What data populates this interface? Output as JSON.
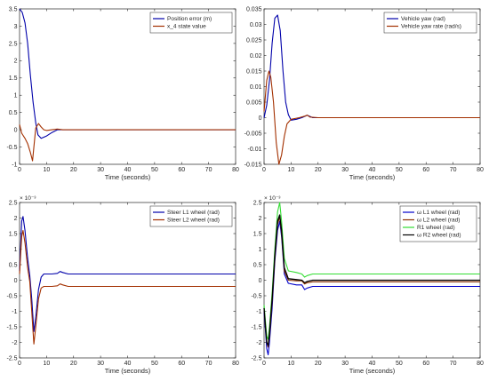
{
  "chart_data": [
    {
      "type": "line",
      "xlabel": "Time (seconds)",
      "xlim": [
        0,
        80
      ],
      "ylim": [
        -1,
        3.5
      ],
      "xticks": [
        0,
        10,
        20,
        30,
        40,
        50,
        60,
        70,
        80
      ],
      "yticks": [
        "3.5",
        "3",
        "2.5",
        "2",
        "1.5",
        "1",
        "0.5",
        "0",
        "-0.5",
        "-1"
      ],
      "yticks_values": [
        3.5,
        3,
        2.5,
        2,
        1.5,
        1,
        0.5,
        0,
        -0.5,
        -1
      ],
      "exponent_label": "",
      "legend_position": "top-right",
      "grid": false,
      "series": [
        {
          "name": "Position error (m)",
          "color": "#0000aa",
          "points": [
            [
              0,
              3.5
            ],
            [
              1,
              3.4
            ],
            [
              2,
              3.1
            ],
            [
              3,
              2.5
            ],
            [
              4,
              1.6
            ],
            [
              5,
              0.8
            ],
            [
              6,
              0.2
            ],
            [
              6.8,
              -0.15
            ],
            [
              8,
              -0.25
            ],
            [
              10,
              -0.18
            ],
            [
              12,
              -0.08
            ],
            [
              14,
              0.0
            ],
            [
              16,
              0.0
            ],
            [
              20,
              0
            ],
            [
              80,
              0
            ]
          ]
        },
        {
          "name": "x_4 state value",
          "color": "#a33000",
          "points": [
            [
              0,
              0.15
            ],
            [
              0.8,
              -0.1
            ],
            [
              2,
              -0.25
            ],
            [
              3,
              -0.4
            ],
            [
              4,
              -0.65
            ],
            [
              4.8,
              -0.9
            ],
            [
              5.3,
              -0.5
            ],
            [
              6,
              0.05
            ],
            [
              7,
              0.18
            ],
            [
              8,
              0.08
            ],
            [
              9,
              0.0
            ],
            [
              10,
              -0.02
            ],
            [
              12,
              0.0
            ],
            [
              14,
              0.02
            ],
            [
              16,
              0.0
            ],
            [
              80,
              0
            ]
          ]
        }
      ]
    },
    {
      "type": "line",
      "xlabel": "Time (seconds)",
      "xlim": [
        0,
        80
      ],
      "ylim": [
        -0.015,
        0.035
      ],
      "xticks": [
        0,
        10,
        20,
        30,
        40,
        50,
        60,
        70,
        80
      ],
      "yticks": [
        "0.035",
        "0.03",
        "0.025",
        "0.02",
        "0.015",
        "0.01",
        "0.005",
        "0",
        "-0.005",
        "-0.01",
        "-0.015"
      ],
      "yticks_values": [
        0.035,
        0.03,
        0.025,
        0.02,
        0.015,
        0.01,
        0.005,
        0,
        -0.005,
        -0.01,
        -0.015
      ],
      "exponent_label": "",
      "legend_position": "top-right",
      "grid": false,
      "series": [
        {
          "name": "Vehicle yaw (rad)",
          "color": "#0000aa",
          "points": [
            [
              0,
              0
            ],
            [
              1,
              0.004
            ],
            [
              2,
              0.012
            ],
            [
              3,
              0.024
            ],
            [
              4,
              0.032
            ],
            [
              5,
              0.033
            ],
            [
              6,
              0.028
            ],
            [
              7,
              0.015
            ],
            [
              8,
              0.005
            ],
            [
              9,
              0.001
            ],
            [
              10,
              -0.0008
            ],
            [
              12,
              -0.0005
            ],
            [
              14,
              0.0
            ],
            [
              16,
              0.0008
            ],
            [
              18,
              0
            ],
            [
              80,
              0
            ]
          ]
        },
        {
          "name": "Vehicle yaw rate (rad/s)",
          "color": "#a33000",
          "points": [
            [
              0,
              0.002
            ],
            [
              1,
              0.012
            ],
            [
              1.8,
              0.015
            ],
            [
              2.5,
              0.013
            ],
            [
              3.5,
              0.005
            ],
            [
              4.5,
              -0.008
            ],
            [
              5.5,
              -0.015
            ],
            [
              6.5,
              -0.012
            ],
            [
              7.5,
              -0.006
            ],
            [
              8.5,
              -0.002
            ],
            [
              10,
              -0.0005
            ],
            [
              13,
              0.0
            ],
            [
              15,
              0.0005
            ],
            [
              16,
              0.0008
            ],
            [
              17,
              0.0002
            ],
            [
              20,
              0
            ],
            [
              80,
              0
            ]
          ]
        }
      ]
    },
    {
      "type": "line",
      "xlabel": "Time (seconds)",
      "xlim": [
        0,
        80
      ],
      "ylim": [
        -2.5,
        2.5
      ],
      "xticks": [
        0,
        10,
        20,
        30,
        40,
        50,
        60,
        70,
        80
      ],
      "yticks": [
        "2.5",
        "2",
        "1.5",
        "1",
        "0.5",
        "0",
        "-0.5",
        "-1",
        "-1.5",
        "-2",
        "-2.5"
      ],
      "yticks_values": [
        2.5,
        2,
        1.5,
        1,
        0.5,
        0,
        -0.5,
        -1,
        -1.5,
        -2,
        -2.5
      ],
      "exponent_label": "× 10⁻³",
      "legend_position": "top-right",
      "grid": false,
      "series": [
        {
          "name": "Steer L1 wheel (rad)",
          "color": "#0000aa",
          "points": [
            [
              0,
              0.3
            ],
            [
              0.8,
              1.9
            ],
            [
              1.3,
              2.05
            ],
            [
              2,
              1.6
            ],
            [
              3,
              0.7
            ],
            [
              3.8,
              0.15
            ],
            [
              4.5,
              -0.6
            ],
            [
              5.3,
              -1.65
            ],
            [
              6,
              -1.2
            ],
            [
              7,
              -0.3
            ],
            [
              8,
              0.1
            ],
            [
              9,
              0.2
            ],
            [
              12,
              0.2
            ],
            [
              14,
              0.22
            ],
            [
              15,
              0.28
            ],
            [
              16,
              0.25
            ],
            [
              18,
              0.2
            ],
            [
              80,
              0.2
            ]
          ]
        },
        {
          "name": "Steer L2 wheel (rad)",
          "color": "#a33000",
          "points": [
            [
              0,
              0.2
            ],
            [
              0.8,
              1.4
            ],
            [
              1.3,
              1.6
            ],
            [
              2,
              1.2
            ],
            [
              3,
              0.4
            ],
            [
              3.8,
              -0.05
            ],
            [
              4.5,
              -1.0
            ],
            [
              5.3,
              -2.05
            ],
            [
              6,
              -1.5
            ],
            [
              7,
              -0.6
            ],
            [
              8,
              -0.25
            ],
            [
              9,
              -0.2
            ],
            [
              12,
              -0.2
            ],
            [
              14,
              -0.18
            ],
            [
              15,
              -0.12
            ],
            [
              16,
              -0.15
            ],
            [
              18,
              -0.2
            ],
            [
              80,
              -0.2
            ]
          ]
        }
      ]
    },
    {
      "type": "line",
      "xlabel": "Time (seconds)",
      "xlim": [
        0,
        80
      ],
      "ylim": [
        -2.5,
        2.5
      ],
      "xticks": [
        0,
        10,
        20,
        30,
        40,
        50,
        60,
        70,
        80
      ],
      "yticks": [
        "2.5",
        "2",
        "1.5",
        "1",
        "0.5",
        "0",
        "-0.5",
        "-1",
        "-1.5",
        "-2",
        "-2.5"
      ],
      "yticks_values": [
        2.5,
        2,
        1.5,
        1,
        0.5,
        0,
        -0.5,
        -1,
        -1.5,
        -2,
        -2.5
      ],
      "exponent_label": "× 10⁻³",
      "legend_position": "top-right",
      "grid": false,
      "series": [
        {
          "name": "ω L1 wheel (rad)",
          "color": "#0000cc",
          "points": [
            [
              0,
              -1.0
            ],
            [
              1,
              -2.2
            ],
            [
              1.5,
              -2.4
            ],
            [
              2,
              -2.0
            ],
            [
              3,
              -0.9
            ],
            [
              4,
              0.6
            ],
            [
              5,
              1.6
            ],
            [
              5.8,
              1.9
            ],
            [
              6.5,
              1.4
            ],
            [
              7.5,
              0.2
            ],
            [
              9,
              -0.1
            ],
            [
              12,
              -0.15
            ],
            [
              14,
              -0.15
            ],
            [
              15,
              -0.3
            ],
            [
              16,
              -0.25
            ],
            [
              18,
              -0.2
            ],
            [
              80,
              -0.2
            ]
          ]
        },
        {
          "name": "ω L2 wheel (rad)",
          "color": "#8b3000",
          "points": [
            [
              0,
              -0.9
            ],
            [
              1,
              -2.0
            ],
            [
              1.5,
              -2.15
            ],
            [
              2,
              -1.8
            ],
            [
              3,
              -0.7
            ],
            [
              4,
              0.7
            ],
            [
              5,
              1.8
            ],
            [
              5.8,
              2.05
            ],
            [
              6.5,
              1.5
            ],
            [
              7.5,
              0.3
            ],
            [
              9,
              0.0
            ],
            [
              12,
              -0.02
            ],
            [
              14,
              -0.02
            ],
            [
              15,
              -0.12
            ],
            [
              16,
              -0.08
            ],
            [
              18,
              -0.05
            ],
            [
              80,
              -0.05
            ]
          ]
        },
        {
          "name": "R1 wheel (rad)",
          "color": "#33dd33",
          "points": [
            [
              0,
              -0.8
            ],
            [
              1,
              -1.8
            ],
            [
              1.5,
              -1.9
            ],
            [
              2,
              -1.5
            ],
            [
              3,
              -0.4
            ],
            [
              4,
              1.0
            ],
            [
              5,
              2.2
            ],
            [
              5.8,
              2.5
            ],
            [
              6.5,
              1.9
            ],
            [
              7.5,
              0.7
            ],
            [
              9,
              0.3
            ],
            [
              12,
              0.25
            ],
            [
              14,
              0.2
            ],
            [
              15,
              0.1
            ],
            [
              16,
              0.15
            ],
            [
              18,
              0.2
            ],
            [
              80,
              0.2
            ]
          ]
        },
        {
          "name": "ω R2 wheel (rad)",
          "color": "#000000",
          "points": [
            [
              0,
              -0.9
            ],
            [
              1,
              -2.0
            ],
            [
              1.5,
              -2.1
            ],
            [
              2,
              -1.7
            ],
            [
              3,
              -0.6
            ],
            [
              4,
              0.8
            ],
            [
              5,
              1.9
            ],
            [
              5.8,
              2.1
            ],
            [
              6.5,
              1.6
            ],
            [
              7.5,
              0.4
            ],
            [
              9,
              0.05
            ],
            [
              12,
              0.02
            ],
            [
              14,
              0.0
            ],
            [
              15,
              -0.08
            ],
            [
              16,
              -0.04
            ],
            [
              18,
              0.0
            ],
            [
              80,
              0.0
            ]
          ]
        }
      ]
    }
  ]
}
